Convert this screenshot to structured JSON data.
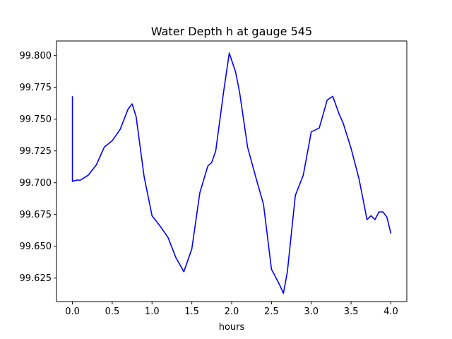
{
  "chart_data": {
    "type": "line",
    "title": "Water Depth h at gauge 545",
    "xlabel": "hours",
    "ylabel": "",
    "xlim": [
      -0.2,
      4.2
    ],
    "ylim": [
      99.6065,
      99.8115
    ],
    "x_ticks": [
      0.0,
      0.5,
      1.0,
      1.5,
      2.0,
      2.5,
      3.0,
      3.5,
      4.0
    ],
    "x_tick_labels": [
      "0.0",
      "0.5",
      "1.0",
      "1.5",
      "2.0",
      "2.5",
      "3.0",
      "3.5",
      "4.0"
    ],
    "y_ticks": [
      99.625,
      99.65,
      99.675,
      99.7,
      99.725,
      99.75,
      99.775,
      99.8
    ],
    "y_tick_labels": [
      "99.625",
      "99.650",
      "99.675",
      "99.700",
      "99.725",
      "99.750",
      "99.775",
      "99.800"
    ],
    "grid": false,
    "line_color": "#0000ff",
    "series": [
      {
        "name": "",
        "x": [
          0.0,
          0.0,
          0.0,
          0.05,
          0.1,
          0.2,
          0.3,
          0.4,
          0.5,
          0.6,
          0.7,
          0.75,
          0.8,
          0.9,
          1.0,
          1.1,
          1.2,
          1.3,
          1.4,
          1.5,
          1.6,
          1.7,
          1.75,
          1.8,
          1.9,
          1.97,
          2.05,
          2.1,
          2.2,
          2.3,
          2.4,
          2.5,
          2.6,
          2.65,
          2.7,
          2.8,
          2.9,
          3.0,
          3.1,
          3.2,
          3.27,
          3.35,
          3.4,
          3.5,
          3.6,
          3.7,
          3.75,
          3.8,
          3.85,
          3.9,
          3.95,
          4.0
        ],
        "y": [
          99.768,
          99.702,
          99.701,
          99.702,
          99.702,
          99.706,
          99.714,
          99.728,
          99.733,
          99.742,
          99.758,
          99.762,
          99.752,
          99.705,
          99.674,
          99.666,
          99.657,
          99.641,
          99.63,
          99.648,
          99.692,
          99.713,
          99.716,
          99.725,
          99.772,
          99.802,
          99.787,
          99.771,
          99.728,
          99.705,
          99.683,
          99.632,
          99.62,
          99.613,
          99.63,
          99.69,
          99.706,
          99.74,
          99.743,
          99.765,
          99.768,
          99.754,
          99.747,
          99.727,
          99.703,
          99.671,
          99.674,
          99.671,
          99.677,
          99.677,
          99.673,
          99.66
        ]
      }
    ]
  }
}
